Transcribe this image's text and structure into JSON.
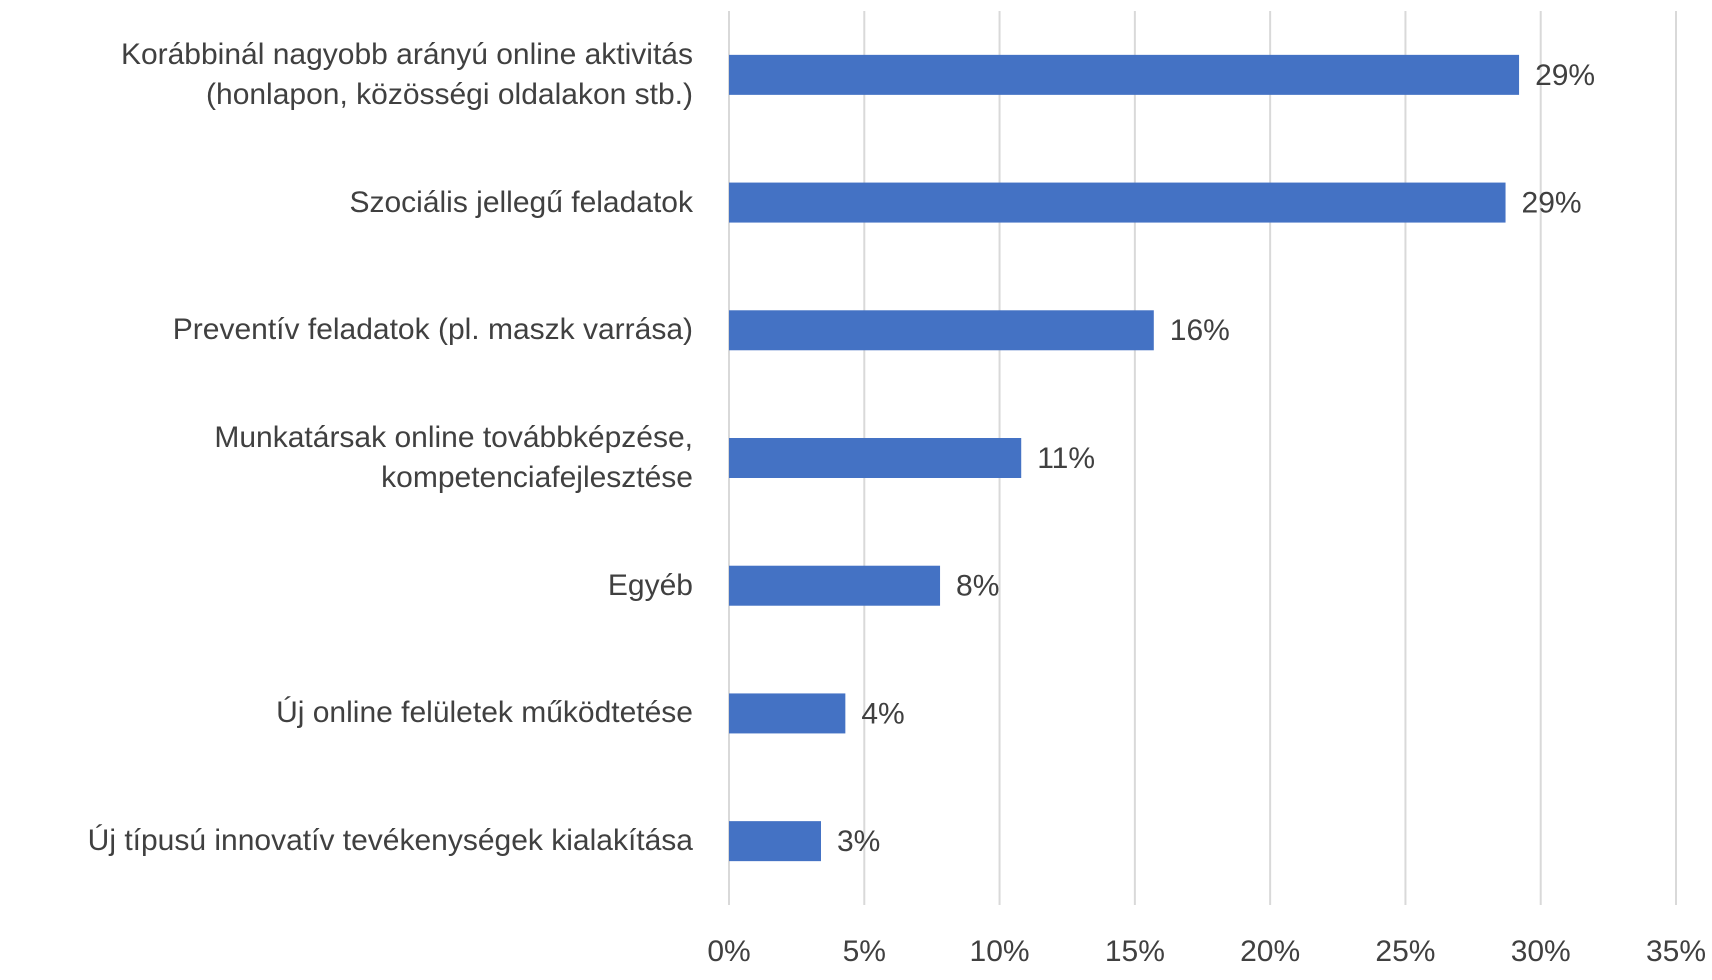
{
  "chart_data": {
    "type": "bar",
    "orientation": "horizontal",
    "categories": [
      "Korábbinál nagyobb arányú online aktivitás\n(honlapon, közösségi oldalakon stb.)",
      "Szociális jellegű feladatok",
      "Preventív feladatok (pl. maszk varrása)",
      "Munkatársak online továbbképzése,\nkompetenciafejlesztése",
      "Egyéb",
      "Új online felületek működtetése",
      "Új típusú innovatív tevékenységek kialakítása"
    ],
    "values": [
      29.2,
      28.7,
      15.7,
      10.8,
      7.8,
      4.3,
      3.4
    ],
    "value_labels": [
      "29%",
      "29%",
      "16%",
      "11%",
      "8%",
      "4%",
      "3%"
    ],
    "color": "#4472c4",
    "xlim": [
      0,
      35
    ],
    "xticks": [
      {
        "value": 0,
        "label": "0%"
      },
      {
        "value": 5,
        "label": "5%"
      },
      {
        "value": 10,
        "label": "10%"
      },
      {
        "value": 15,
        "label": "15%"
      },
      {
        "value": 20,
        "label": "20%"
      },
      {
        "value": 25,
        "label": "25%"
      },
      {
        "value": 30,
        "label": "30%"
      },
      {
        "value": 35,
        "label": "35%"
      }
    ],
    "grid": true
  }
}
